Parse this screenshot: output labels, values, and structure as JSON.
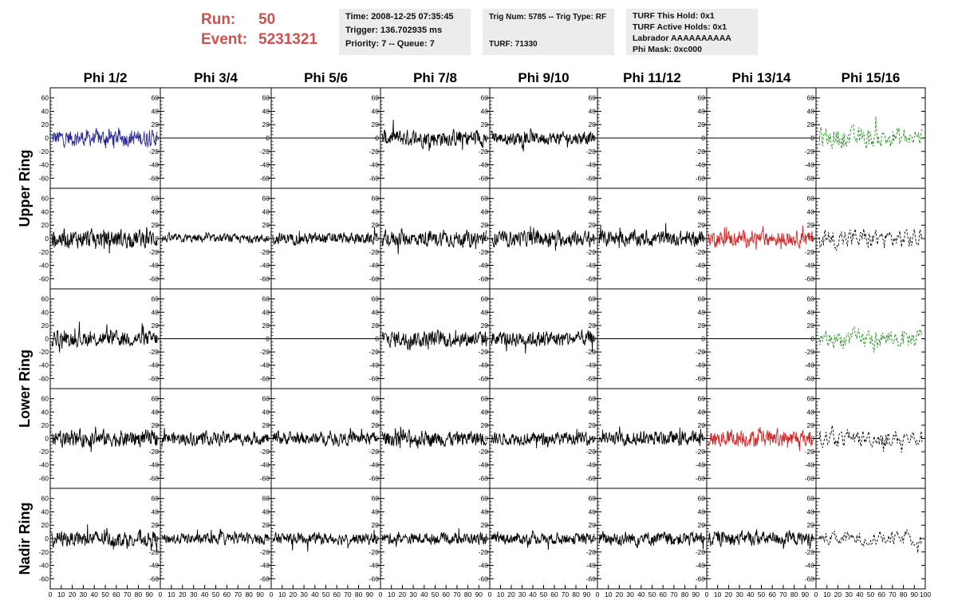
{
  "header": {
    "run_label": "Run:",
    "run_value": "50",
    "event_label": "Event:",
    "event_value": "5231321",
    "info1": [
      "Time: 2008-12-25 07:35:45",
      "Trigger: 136.702935 ms",
      "Priority: 7 -- Queue: 7"
    ],
    "info2": [
      "Trig Num: 5785 -- Trig Type: RF",
      "TURF: 71330"
    ],
    "info3": [
      "TURF This Hold: 0x1",
      "TURF Active Holds: 0x1",
      "Labrador AAAAAAAAAA",
      "Phi Mask: 0xc000"
    ]
  },
  "chart_data": {
    "type": "line",
    "title": "",
    "columns": [
      "Phi 1/2",
      "Phi 3/4",
      "Phi 5/6",
      "Phi 7/8",
      "Phi 9/10",
      "Phi 11/12",
      "Phi 13/14",
      "Phi 15/16"
    ],
    "rows": [
      {
        "label": "Upper Ring",
        "rows": [
          0,
          1
        ]
      },
      {
        "label": "Lower Ring",
        "rows": [
          2,
          3
        ]
      },
      {
        "label": "Nadir Ring",
        "rows": [
          4
        ]
      }
    ],
    "y_ticks": [
      "60",
      "40",
      "20",
      "0",
      "-20",
      "-40",
      "-60"
    ],
    "y_ticks_values": [
      60,
      40,
      20,
      0,
      -20,
      -40,
      -60
    ],
    "ylim": [
      -68,
      68
    ],
    "xlim": [
      0,
      100
    ],
    "x_ticks": [
      "0",
      "10",
      "20",
      "30",
      "40",
      "50",
      "60",
      "70",
      "80",
      "90",
      "100"
    ],
    "x_ticks_values": [
      0,
      10,
      20,
      30,
      40,
      50,
      60,
      70,
      80,
      90,
      100
    ],
    "colors": {
      "default": "#000000",
      "blue": "#2a2a9a",
      "red": "#cc2a2a",
      "green": "#1e8c1e",
      "frame": "#000000"
    },
    "panels": [
      [
        {
          "c": "blue",
          "a": 12
        },
        {
          "c": "flat",
          "a": 0
        },
        {
          "c": "flat",
          "a": 0
        },
        {
          "c": "default",
          "a": 12
        },
        {
          "c": "default",
          "a": 9
        },
        {
          "c": "flat",
          "a": 0
        },
        {
          "c": "flat",
          "a": 0
        },
        {
          "c": "green",
          "a": 16,
          "dash": true
        }
      ],
      [
        {
          "c": "default",
          "a": 13
        },
        {
          "c": "default",
          "a": 6
        },
        {
          "c": "default",
          "a": 8
        },
        {
          "c": "default",
          "a": 11
        },
        {
          "c": "default",
          "a": 11
        },
        {
          "c": "default",
          "a": 11
        },
        {
          "c": "red",
          "a": 11
        },
        {
          "c": "default",
          "a": 15,
          "dash": true
        }
      ],
      [
        {
          "c": "default",
          "a": 11
        },
        {
          "c": "flat",
          "a": 0
        },
        {
          "c": "flat",
          "a": 0
        },
        {
          "c": "default",
          "a": 12
        },
        {
          "c": "default",
          "a": 11
        },
        {
          "c": "flat",
          "a": 0
        },
        {
          "c": "flat",
          "a": 0
        },
        {
          "c": "green",
          "a": 14,
          "dash": true
        }
      ],
      [
        {
          "c": "default",
          "a": 12
        },
        {
          "c": "default",
          "a": 9
        },
        {
          "c": "default",
          "a": 9
        },
        {
          "c": "default",
          "a": 11
        },
        {
          "c": "default",
          "a": 9
        },
        {
          "c": "default",
          "a": 10
        },
        {
          "c": "red",
          "a": 12
        },
        {
          "c": "default",
          "a": 13,
          "dash": true
        }
      ],
      [
        {
          "c": "default",
          "a": 11
        },
        {
          "c": "default",
          "a": 8
        },
        {
          "c": "default",
          "a": 8
        },
        {
          "c": "default",
          "a": 8
        },
        {
          "c": "default",
          "a": 8
        },
        {
          "c": "default",
          "a": 10
        },
        {
          "c": "default",
          "a": 10
        },
        {
          "c": "default",
          "a": 10,
          "dash": true
        }
      ]
    ]
  }
}
